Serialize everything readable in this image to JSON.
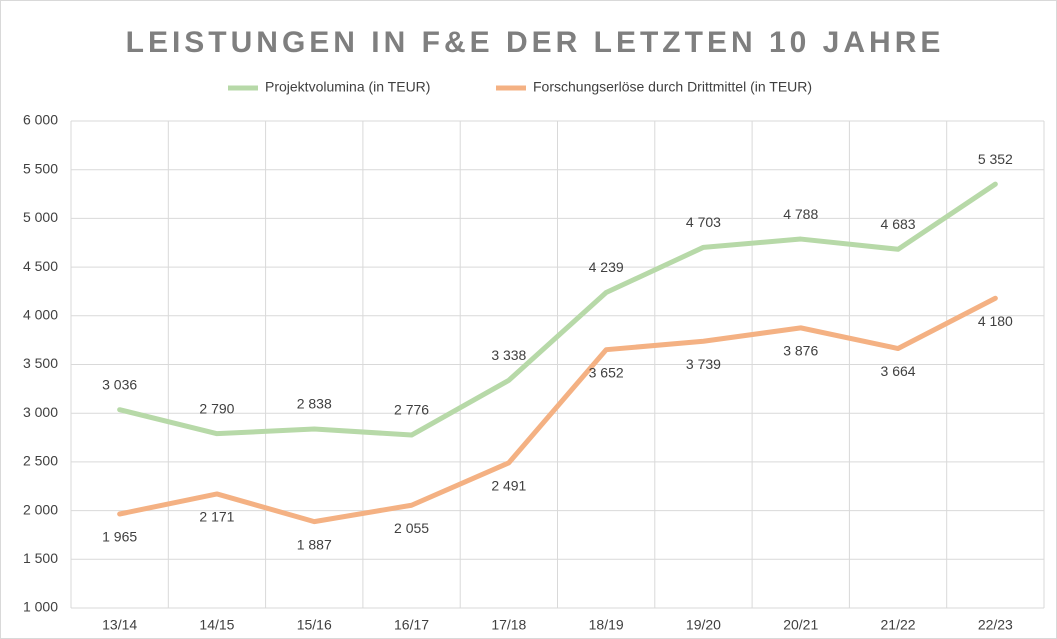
{
  "chart_data": {
    "type": "line",
    "title": "LEISTUNGEN IN F&E DER LETZTEN 10 JAHRE",
    "categories": [
      "13/14",
      "14/15",
      "15/16",
      "16/17",
      "17/18",
      "18/19",
      "19/20",
      "20/21",
      "21/22",
      "22/23"
    ],
    "series": [
      {
        "name": "Projektvolumina (in TEUR)",
        "color": "#b7d9a8",
        "values": [
          3036,
          2790,
          2838,
          2776,
          3338,
          4239,
          4703,
          4788,
          4683,
          5352
        ],
        "value_labels": [
          "3 036",
          "2 790",
          "2 838",
          "2 776",
          "3 338",
          "4 239",
          "4 703",
          "4 788",
          "4 683",
          "5 352"
        ]
      },
      {
        "name": "Forschungserlöse durch Drittmittel (in TEUR)",
        "color": "#f4b183",
        "values": [
          1965,
          2171,
          1887,
          2055,
          2491,
          3652,
          3739,
          3876,
          3664,
          4180
        ],
        "value_labels": [
          "1 965",
          "2 171",
          "1 887",
          "2 055",
          "2 491",
          "3 652",
          "3 739",
          "3 876",
          "3 664",
          "4 180"
        ]
      }
    ],
    "ylim": [
      1000,
      6000
    ],
    "yticks": [
      {
        "value": 1000,
        "label": "1 000"
      },
      {
        "value": 1500,
        "label": "1 500"
      },
      {
        "value": 2000,
        "label": "2 000"
      },
      {
        "value": 2500,
        "label": "2 500"
      },
      {
        "value": 3000,
        "label": "3 000"
      },
      {
        "value": 3500,
        "label": "3 500"
      },
      {
        "value": 4000,
        "label": "4 000"
      },
      {
        "value": 4500,
        "label": "4 500"
      },
      {
        "value": 5000,
        "label": "5 000"
      },
      {
        "value": 5500,
        "label": "5 500"
      },
      {
        "value": 6000,
        "label": "6 000"
      }
    ],
    "grid": true
  }
}
